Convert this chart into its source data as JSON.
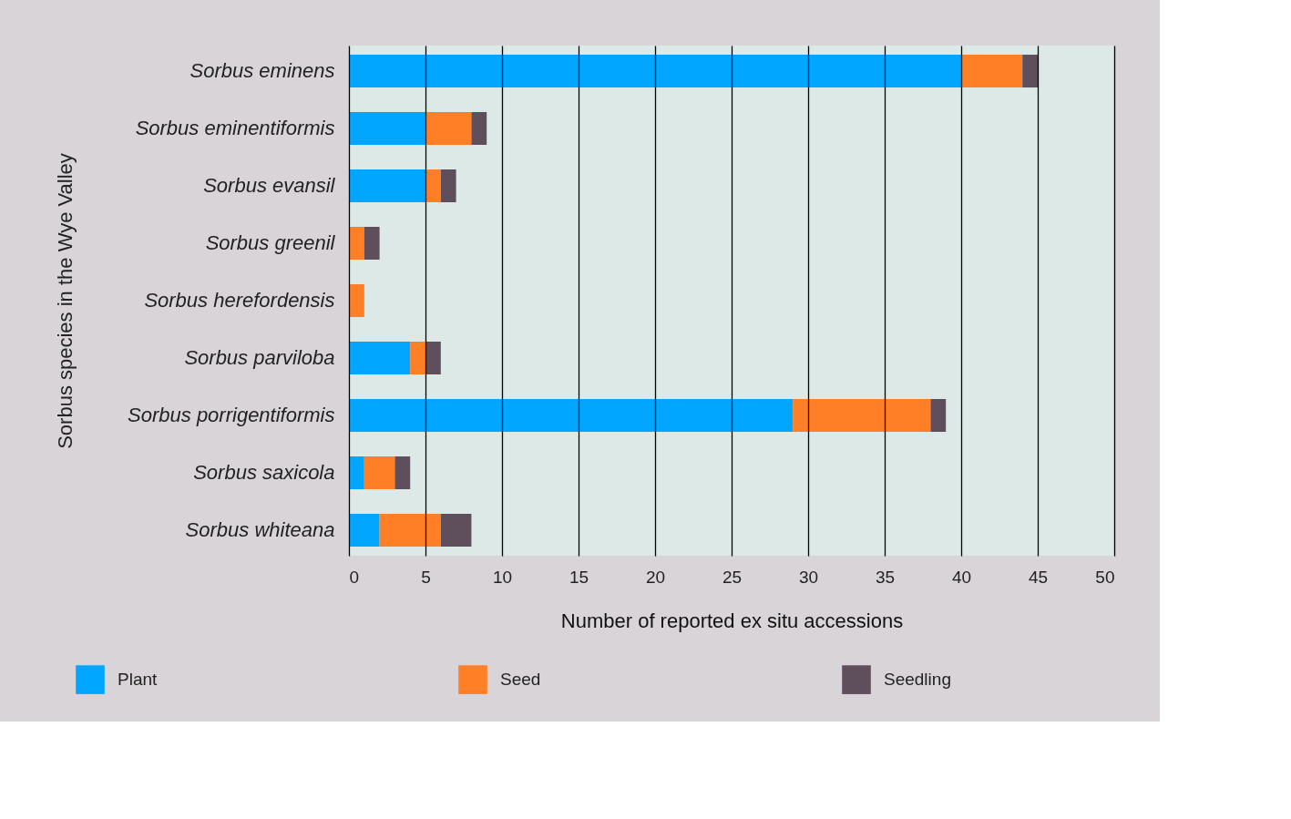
{
  "chart_data": {
    "type": "bar",
    "orientation": "horizontal",
    "stacked": true,
    "ylabel": "Sorbus species in the Wye Valley",
    "xlabel": "Number of reported ex situ accessions",
    "categories": [
      "Sorbus eminens",
      "Sorbus eminentiformis",
      "Sorbus evansil",
      "Sorbus greenil",
      "Sorbus herefordensis",
      "Sorbus parviloba",
      "Sorbus porrigentiformis",
      "Sorbus saxicola",
      "Sorbus whiteana"
    ],
    "series": [
      {
        "name": "Plant",
        "color": "#00a6ff",
        "values": [
          40,
          5,
          5,
          0,
          0,
          4,
          29,
          1,
          2
        ]
      },
      {
        "name": "Seed",
        "color": "#ff7f27",
        "values": [
          4,
          3,
          1,
          1,
          1,
          1,
          9,
          2,
          4
        ]
      },
      {
        "name": "Seedling",
        "color": "#5f4f5c",
        "values": [
          1,
          1,
          1,
          1,
          0,
          1,
          1,
          1,
          2
        ]
      }
    ],
    "xlim": [
      0,
      50
    ],
    "xticks": [
      0,
      5,
      10,
      15,
      20,
      25,
      30,
      35,
      40,
      45,
      50
    ],
    "grid": "x",
    "legend": "bottom"
  }
}
